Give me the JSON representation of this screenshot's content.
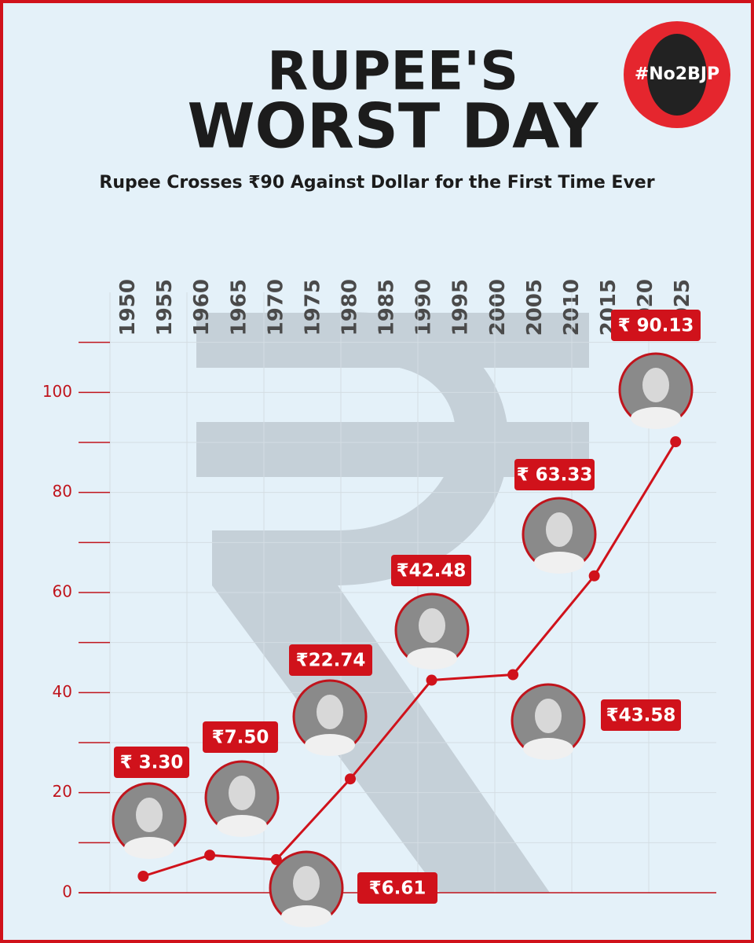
{
  "header": {
    "title_line1": "RUPEE'S",
    "title_line2": "WORST DAY",
    "subtitle": "Rupee Crosses ₹90 Against Dollar for the First Time Ever",
    "badge": "#No2BJP"
  },
  "chart_data": {
    "type": "line",
    "color": "#d0121b",
    "x": [
      1952,
      1961,
      1970,
      1980,
      1991,
      2002,
      2013,
      2024
    ],
    "values": [
      3.3,
      7.5,
      6.61,
      22.74,
      42.48,
      43.58,
      63.33,
      90.13
    ],
    "value_labels": [
      "₹ 3.30",
      "₹7.50",
      "₹6.61",
      "₹22.74",
      "₹42.48",
      "₹43.58",
      "₹ 63.33",
      "₹ 90.13"
    ],
    "xlim": [
      1947.5,
      2029.5
    ],
    "xticks": [
      1950,
      1955,
      1960,
      1965,
      1970,
      1975,
      1980,
      1985,
      1990,
      1995,
      2000,
      2005,
      2010,
      2015,
      2020,
      2025
    ],
    "ylim": [
      0,
      120
    ],
    "yticks": [
      0,
      20,
      40,
      60,
      80,
      100
    ],
    "yminor": [
      10,
      30,
      50,
      70,
      90,
      110
    ],
    "grid": true
  }
}
